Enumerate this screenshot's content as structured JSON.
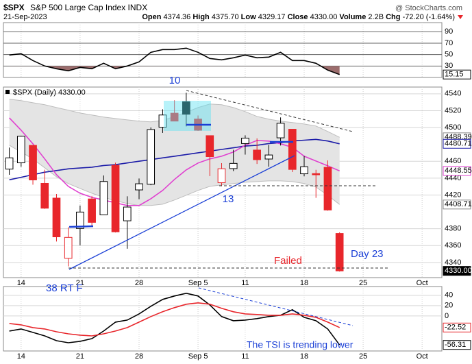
{
  "header": {
    "symbol": "$SPX",
    "name": "S&P 500 Large Cap Index INDX",
    "source": "@ StockCharts.com",
    "date": "21-Sep-2023",
    "quote": [
      {
        "label": "Open",
        "value": "4374.36"
      },
      {
        "label": "High",
        "value": "4375.70"
      },
      {
        "label": "Low",
        "value": "4329.17"
      },
      {
        "label": "Close",
        "value": "4330.00"
      },
      {
        "label": "Volume",
        "value": "2.2B"
      },
      {
        "label": "Chg",
        "value": "-72.20 (-1.64%)"
      }
    ]
  },
  "annotations": {
    "peak": "10",
    "low": "13",
    "failed": "Failed",
    "day": "Day 23",
    "retrace": "38 RT F",
    "tsi_note": "The TSI is trending lower"
  },
  "chart_data": [
    {
      "type": "line",
      "ylim": [
        10,
        106
      ],
      "yticks": [
        90,
        70,
        50,
        30
      ],
      "grid": true,
      "oversold_fill": "#9c6d6d",
      "series": [
        {
          "color": "#000000",
          "values": [
            49.2,
            51.6,
            39.6,
            30,
            25.2,
            21.6,
            27.6,
            25.2,
            34.8,
            25.2,
            30,
            37.2,
            54,
            58.8,
            58.8,
            61.2,
            54,
            43.2,
            40.8,
            44.4,
            49.2,
            44.4,
            45.6,
            54,
            39.6,
            39.6,
            34.8,
            22.8,
            15.15,
            null,
            null,
            null,
            null,
            null,
            null,
            null,
            null
          ]
        }
      ],
      "price_labels": [
        {
          "value": 15.15,
          "color": "#000000",
          "style": "outline"
        }
      ]
    },
    {
      "type": "candlestick",
      "title": "$SPX (Daily) 4330.00",
      "ylim": [
        4322,
        4548
      ],
      "yticks": [
        4340,
        4360,
        4380,
        4420,
        4440,
        4460,
        4500,
        4520,
        4540
      ],
      "grid": true,
      "up_color": "#000000",
      "down_color": "#e8262b",
      "categories": [
        null,
        "14",
        null,
        null,
        null,
        null,
        "21",
        null,
        null,
        null,
        null,
        "28",
        null,
        null,
        null,
        null,
        "Sep 5",
        null,
        null,
        null,
        "11",
        null,
        null,
        null,
        null,
        "18",
        null,
        null,
        null,
        null,
        "25",
        null,
        null,
        null,
        null,
        "Oct",
        null
      ],
      "open": [
        4450.69,
        4458.13,
        4478.87,
        4433.79,
        4416.32,
        4344.88,
        4380.28,
        4415.33,
        4396.44,
        4455.16,
        4389.38,
        4426.03,
        4432.75,
        4500.34,
        4517.01,
        4530.6,
        4510.06,
        4490.35,
        4434.55,
        4451.3,
        4480.98,
        4473.27,
        4462.65,
        4487.78,
        4497.98,
        4445.13,
        4445.41,
        4452.81,
        4374.36,
        null,
        null,
        null,
        null,
        null,
        null,
        null,
        null
      ],
      "high": [
        4476.23,
        4490.33,
        4478.87,
        4449.95,
        4421.17,
        4381.82,
        4407.55,
        4418.59,
        4443.18,
        4458.3,
        4418.46,
        4439.56,
        4500.14,
        4521.65,
        4532.26,
        4541.25,
        4514.29,
        4490.35,
        4457.81,
        4473.53,
        4490.77,
        4487.11,
        4479.39,
        4511.99,
        4497.98,
        4466.36,
        4449.85,
        4461.03,
        4375.7,
        null,
        null,
        null,
        null,
        null,
        null,
        null,
        null
      ],
      "low": [
        4443.98,
        4453.44,
        4432.19,
        4403.55,
        4364.83,
        4335.31,
        4360.3,
        4382.77,
        4396.44,
        4375.55,
        4356.29,
        4414.98,
        4431.68,
        4493.59,
        4507.39,
        4501.35,
        4496.01,
        4442.38,
        4430.46,
        4448.38,
        4467.89,
        4456.83,
        4453.52,
        4478.69,
        4447.21,
        4442.11,
        4416.61,
        4401.38,
        4329.17,
        null,
        null,
        null,
        null,
        null,
        null,
        null,
        null
      ],
      "close": [
        4464.05,
        4489.72,
        4437.86,
        4404.33,
        4370.36,
        4369.71,
        4399.77,
        4387.55,
        4436.01,
        4376.31,
        4405.71,
        4433.31,
        4497.63,
        4514.87,
        4507.66,
        4515.77,
        4496.83,
        4465.48,
        4451.14,
        4457.49,
        4487.46,
        4461.9,
        4467.44,
        4505.1,
        4450.32,
        4453.53,
        4443.95,
        4402.2,
        4330,
        null,
        null,
        null,
        null,
        null,
        null,
        null,
        null
      ],
      "band": {
        "color": "#e4e4e4",
        "edge": "#bdbdbd",
        "upper": [
          4533.5,
          4531.9,
          4529.4,
          4527,
          4523.7,
          4520.5,
          4517.2,
          4514.8,
          4512.4,
          4510.7,
          4509.1,
          4507.5,
          4506.7,
          4508.3,
          4513.2,
          4518,
          4523.7,
          4527.8,
          4527,
          4523.7,
          4518.9,
          4513.2,
          4509.9,
          4507.5,
          4505.9,
          4504.2,
          4501.8,
          4495.3,
          4488.39,
          null,
          null,
          null,
          null,
          null,
          null,
          null,
          null
        ],
        "lower": [
          4479,
          4470.9,
          4462.8,
          4452.2,
          4441.6,
          4433.5,
          4427.8,
          4422.1,
          4417.2,
          4413.2,
          4409.9,
          4407.5,
          4407.5,
          4409.1,
          4414,
          4419.7,
          4425.4,
          4430.2,
          4431.9,
          4433.5,
          4435.1,
          4435.9,
          4436.7,
          4436.7,
          4435.9,
          4433.5,
          4429.4,
          4419.7,
          4408.71,
          null,
          null,
          null,
          null,
          null,
          null,
          null,
          null
        ]
      },
      "series": [
        {
          "color": "#1c1ca8",
          "values": [
            4438,
            4441,
            4444,
            4447,
            4449,
            4451,
            4452,
            4453,
            4455,
            4456,
            4458,
            4460,
            4462,
            4464,
            4466,
            4468,
            4470,
            4472,
            4474,
            4476,
            4478,
            4479,
            4481,
            4482,
            4484,
            4485,
            4486,
            4484,
            4480.71,
            null,
            null,
            null,
            null,
            null,
            null,
            null,
            null
          ]
        },
        {
          "color": "#e040d0",
          "values": [
            4511.5,
            4496.9,
            4480.7,
            4462.8,
            4444.1,
            4430.2,
            4422.1,
            4417.2,
            4414,
            4410.7,
            4407.5,
            4407.5,
            4415.6,
            4425.4,
            4438.4,
            4449.8,
            4457.9,
            4462.8,
            4466,
            4470.9,
            4479,
            4484.7,
            4483.9,
            4480.7,
            4476.6,
            4466,
            4460.3,
            4454.6,
            4448.55,
            null,
            null,
            null,
            null,
            null,
            null,
            null,
            null
          ]
        }
      ],
      "price_labels": [
        {
          "value": 4488.39,
          "color": "#888888",
          "style": "outline"
        },
        {
          "value": 4480.71,
          "color": "#1c1ca8",
          "style": "outline"
        },
        {
          "value": 4448.55,
          "color": "#e040d0",
          "style": "outline"
        },
        {
          "value": 4408.71,
          "color": "#888888",
          "style": "outline"
        },
        {
          "value": 4330,
          "label": "4330.00",
          "color": "#000000",
          "style": "filled"
        }
      ]
    },
    {
      "type": "line",
      "ylim": [
        -68,
        57
      ],
      "yticks": [
        40,
        20,
        0
      ],
      "grid": true,
      "categories": [
        null,
        "14",
        null,
        null,
        null,
        null,
        "21",
        null,
        null,
        null,
        null,
        "28",
        null,
        null,
        null,
        null,
        "Sep 5",
        null,
        null,
        null,
        "11",
        null,
        null,
        null,
        null,
        "18",
        null,
        null,
        null,
        null,
        "25",
        null,
        null,
        null,
        null,
        "Oct",
        null
      ],
      "series": [
        {
          "color": "#000000",
          "values": [
            -29.3,
            -25.3,
            -32,
            -38.7,
            -48,
            -52,
            -49.3,
            -44,
            -29.3,
            -12,
            -8,
            4,
            18.7,
            32,
            38.7,
            44,
            38.7,
            21.3,
            -1.3,
            -9.3,
            -8,
            -5.3,
            -1.3,
            1.3,
            12,
            -2.7,
            -9.3,
            -25.3,
            -56.31,
            null,
            null,
            null,
            null,
            null,
            null,
            null,
            null
          ]
        },
        {
          "color": "#e8262b",
          "values": [
            -14.7,
            -17.3,
            -22.7,
            -25.3,
            -30.7,
            -34.7,
            -37.3,
            -38.7,
            -34.7,
            -29.3,
            -22.7,
            -12,
            -1.3,
            8,
            16,
            22.7,
            25.3,
            22.7,
            14.7,
            8,
            4,
            2.7,
            1.3,
            1.3,
            4,
            1.3,
            -2.7,
            -12,
            -22.52,
            null,
            null,
            null,
            null,
            null,
            null,
            null,
            null
          ]
        }
      ],
      "price_labels": [
        {
          "value": -22.52,
          "color": "#e8262b",
          "style": "outline"
        },
        {
          "value": -56.31,
          "color": "#000000",
          "style": "outline"
        }
      ]
    }
  ]
}
